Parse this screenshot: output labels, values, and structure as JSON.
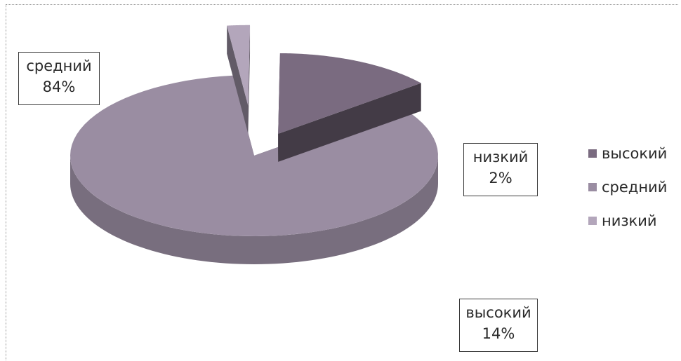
{
  "chart_data": {
    "type": "pie",
    "categories": [
      "высокий",
      "средний",
      "низкий"
    ],
    "values": [
      14,
      84,
      2
    ],
    "value_suffix": "%",
    "colors": {
      "высокий": "#7a6b80",
      "средний": "#9a8da2",
      "низкий": "#b3a6bb"
    },
    "legend": {
      "position": "right",
      "items": [
        "высокий",
        "средний",
        "низкий"
      ]
    },
    "data_labels": [
      {
        "category": "средний",
        "name": "средний",
        "value": "84%"
      },
      {
        "category": "низкий",
        "name": "низкий",
        "value": "2%"
      },
      {
        "category": "высокий",
        "name": "высокий",
        "value": "14%"
      }
    ]
  }
}
